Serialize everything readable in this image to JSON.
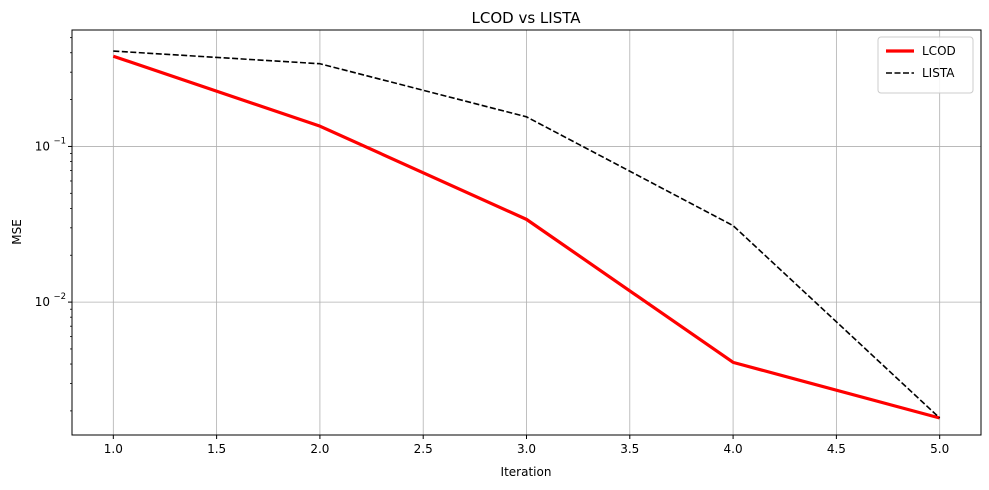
{
  "chart_data": {
    "type": "line",
    "title": "LCOD vs LISTA",
    "xlabel": "Iteration",
    "ylabel": "MSE",
    "x": [
      1.0,
      2.0,
      3.0,
      4.0,
      5.0
    ],
    "xticks": [
      "1.0",
      "1.5",
      "2.0",
      "2.5",
      "3.0",
      "3.5",
      "4.0",
      "4.5",
      "5.0"
    ],
    "yscale": "log",
    "yticks": [
      {
        "value": 0.1,
        "base": "10",
        "exp": "−1"
      },
      {
        "value": 0.01,
        "base": "10",
        "exp": "−2"
      }
    ],
    "xlim": [
      0.8,
      5.2
    ],
    "ylim": [
      0.0014,
      0.56
    ],
    "grid": true,
    "legend_position": "top-right",
    "series": [
      {
        "name": "LCOD",
        "values": [
          0.38,
          0.135,
          0.034,
          0.0041,
          0.0018
        ],
        "color": "#ff0000",
        "style": "solid"
      },
      {
        "name": "LISTA",
        "values": [
          0.41,
          0.34,
          0.155,
          0.031,
          0.0018
        ],
        "color": "#000000",
        "style": "dashed"
      }
    ]
  }
}
